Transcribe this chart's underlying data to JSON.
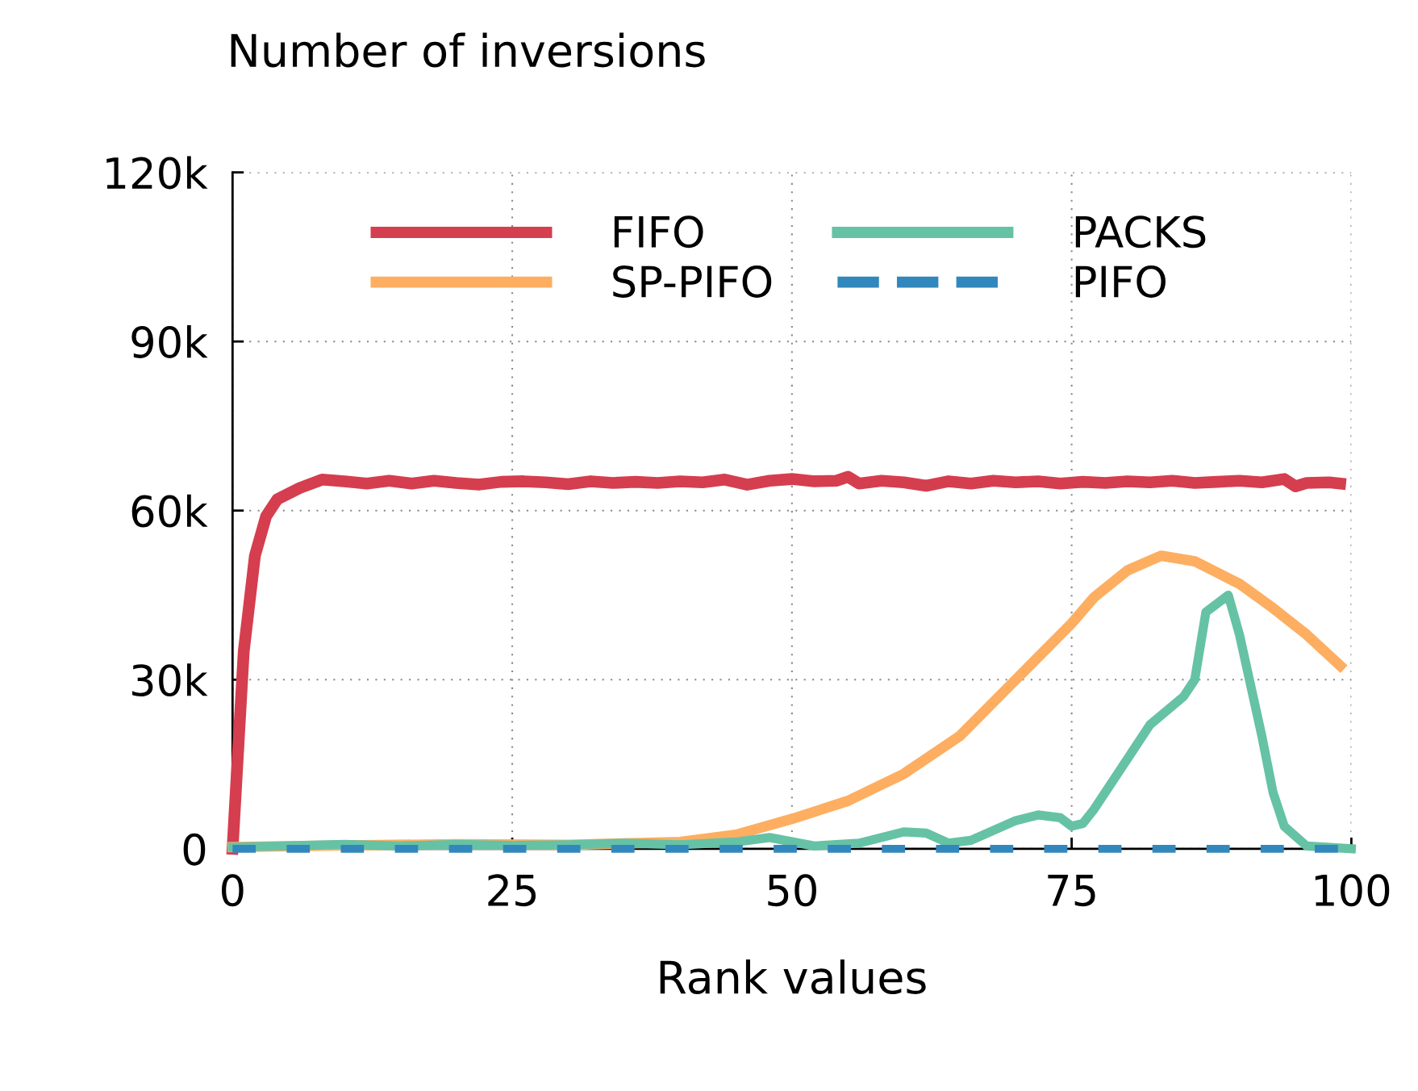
{
  "chart_data": {
    "type": "line",
    "title": "Number of inversions",
    "xlabel": "Rank values",
    "xlim": [
      0,
      100
    ],
    "xticks": [
      0,
      25,
      50,
      75,
      100
    ],
    "ylim": [
      0,
      120000
    ],
    "yticks": [
      {
        "value": 0,
        "label": "0"
      },
      {
        "value": 30000,
        "label": "30k"
      },
      {
        "value": 60000,
        "label": "60k"
      },
      {
        "value": 90000,
        "label": "90k"
      },
      {
        "value": 120000,
        "label": "120k"
      }
    ],
    "grid": true,
    "legend": "top",
    "line_style": "solid",
    "marker": "none",
    "series": [
      {
        "name": "FIFO",
        "color": "#d53e4f",
        "x": [
          0,
          1,
          2,
          3,
          4,
          6,
          8,
          10,
          12,
          14,
          16,
          18,
          20,
          22,
          24,
          26,
          28,
          30,
          32,
          34,
          36,
          38,
          40,
          42,
          44,
          46,
          48,
          50,
          52,
          54,
          55,
          56,
          58,
          60,
          62,
          64,
          66,
          68,
          70,
          72,
          74,
          76,
          78,
          80,
          82,
          84,
          86,
          88,
          90,
          92,
          94,
          95,
          96,
          98,
          99
        ],
        "values": [
          0,
          35000,
          52000,
          59000,
          62000,
          64000,
          65500,
          65200,
          64800,
          65300,
          64800,
          65300,
          64900,
          64600,
          65100,
          65200,
          65000,
          64700,
          65200,
          64900,
          65100,
          64900,
          65200,
          65000,
          65500,
          64600,
          65300,
          65600,
          65200,
          65300,
          66000,
          64800,
          65300,
          65000,
          64400,
          65200,
          64800,
          65300,
          65000,
          65200,
          64800,
          65100,
          64900,
          65200,
          65000,
          65300,
          64900,
          65100,
          65300,
          65000,
          65600,
          64300,
          64900,
          65000,
          64800
        ]
      },
      {
        "name": "SP-PIFO",
        "color": "#fdae61",
        "x": [
          0,
          10,
          20,
          30,
          40,
          45,
          50,
          55,
          60,
          65,
          68,
          70,
          72,
          75,
          77,
          80,
          83,
          86,
          88,
          90,
          93,
          96,
          99
        ],
        "values": [
          300,
          600,
          800,
          700,
          1200,
          2500,
          5300,
          8500,
          13300,
          20000,
          26000,
          30000,
          34000,
          40000,
          44600,
          49400,
          52000,
          51000,
          49000,
          47000,
          42700,
          38000,
          32500
        ]
      },
      {
        "name": "PACKS",
        "color": "#66c2a5",
        "x": [
          0,
          10,
          15,
          20,
          25,
          30,
          35,
          40,
          45,
          48,
          52,
          56,
          60,
          62,
          64,
          66,
          70,
          72,
          74,
          75,
          76,
          77,
          80,
          82,
          85,
          86,
          87,
          89,
          90,
          92,
          93,
          94,
          96,
          100
        ],
        "values": [
          300,
          800,
          500,
          800,
          600,
          700,
          1000,
          700,
          1200,
          2000,
          500,
          1000,
          3000,
          2800,
          1000,
          1500,
          5000,
          6000,
          5500,
          4000,
          4500,
          7000,
          16000,
          22000,
          27000,
          30000,
          42000,
          45000,
          38000,
          20000,
          10000,
          4000,
          500,
          0
        ]
      },
      {
        "name": "PIFO",
        "color": "#3288bd",
        "line_style": "dashed",
        "x": [
          0,
          100
        ],
        "values": [
          0,
          0
        ]
      }
    ]
  }
}
